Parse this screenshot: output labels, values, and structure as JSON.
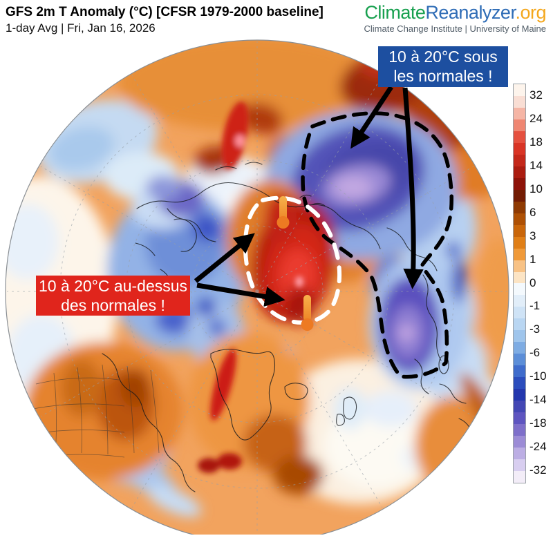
{
  "header": {
    "title": "GFS 2m T Anomaly (°C) [CFSR 1979-2000 baseline]",
    "subtitle": "1-day Avg | Fri, Jan 16, 2026"
  },
  "brand": {
    "wordmark_climate": "Climate",
    "wordmark_reanalyzer": "Reanalyzer",
    "wordmark_org": ".org",
    "tagline": "Climate Change Institute | University of Maine",
    "colors": {
      "climate": "#18a04f",
      "reanalyzer": "#2e6cb6",
      "org": "#f4a71c",
      "tagline": "#4f5b66"
    }
  },
  "annotations": {
    "cold": {
      "line1": "10 à 20°C sous",
      "line2": "les normales !",
      "bg": "#1d4fa0",
      "fg": "#ffffff"
    },
    "warm": {
      "line1": "10 à 20°C au-dessus",
      "line2": "des normales !",
      "bg": "#e0251c",
      "fg": "#ffffff"
    }
  },
  "colorbar": {
    "unit": "°C",
    "labels": [
      32,
      24,
      18,
      14,
      10,
      6,
      3,
      1,
      0,
      -1,
      -3,
      -6,
      -10,
      -14,
      -18,
      -24,
      -32
    ],
    "segments": [
      "#fdf4ec",
      "#f9ded4",
      "#f5b5a5",
      "#ef8672",
      "#e5503f",
      "#d93425",
      "#c4281a",
      "#ab1c10",
      "#8e1309",
      "#731c03",
      "#8f3a02",
      "#ae5004",
      "#c9660a",
      "#e07f17",
      "#f09a39",
      "#f8c285",
      "#fce4c4",
      "#f4f9fd",
      "#e2eef9",
      "#cfe3f6",
      "#b9d6f2",
      "#9fc5ec",
      "#7eace3",
      "#5c8ed8",
      "#3f6ccc",
      "#2b4dbd",
      "#2337ae",
      "#4347b4",
      "#5e55c0",
      "#7e6fca",
      "#9c8cd6",
      "#bcaee4",
      "#d8cef0",
      "#f3edf8"
    ]
  },
  "map": {
    "projection": "north-polar orthographic globe",
    "cold_region_note": "deep blue/purple negative anomaly over Siberia outlined with black dashes",
    "warm_region_note": "deep red positive anomaly near the North Pole outlined with white dashes"
  }
}
